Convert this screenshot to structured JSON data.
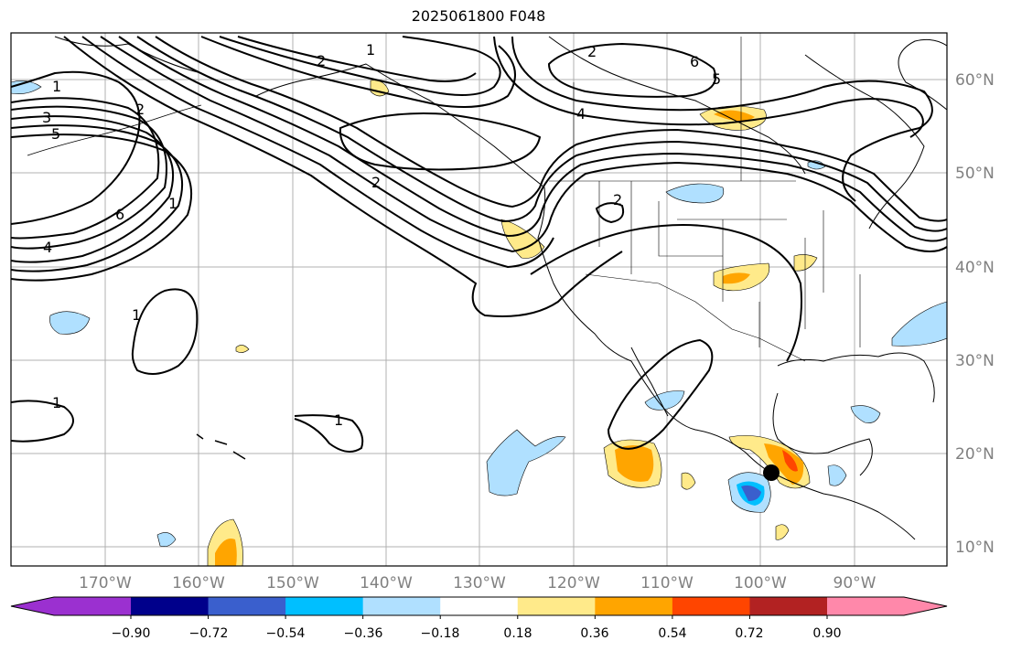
{
  "title": "2025061800 F048",
  "map": {
    "lon_labels": [
      "170°W",
      "160°W",
      "150°W",
      "140°W",
      "130°W",
      "120°W",
      "110°W",
      "100°W",
      "90°W"
    ],
    "lat_labels": [
      "60°N",
      "50°N",
      "40°N",
      "30°N",
      "20°N",
      "10°N"
    ],
    "contour_labels": [
      "1",
      "2",
      "3",
      "5",
      "6",
      "4",
      "2",
      "1",
      "1",
      "1",
      "1",
      "2",
      "4",
      "6",
      "5",
      "2",
      "1",
      "2"
    ],
    "marker": "black-dot"
  },
  "colorbar": {
    "tick_labels": [
      "−0.90",
      "−0.72",
      "−0.54",
      "−0.36",
      "−0.18",
      "0.18",
      "0.36",
      "0.54",
      "0.72",
      "0.90"
    ],
    "colors": [
      "#9b30d0",
      "#00008b",
      "#3a5fcd",
      "#00bfff",
      "#b0e0ff",
      "#ffffff",
      "#ffea8a",
      "#ffa500",
      "#ff4500",
      "#b22222",
      "#ff88aa"
    ]
  }
}
